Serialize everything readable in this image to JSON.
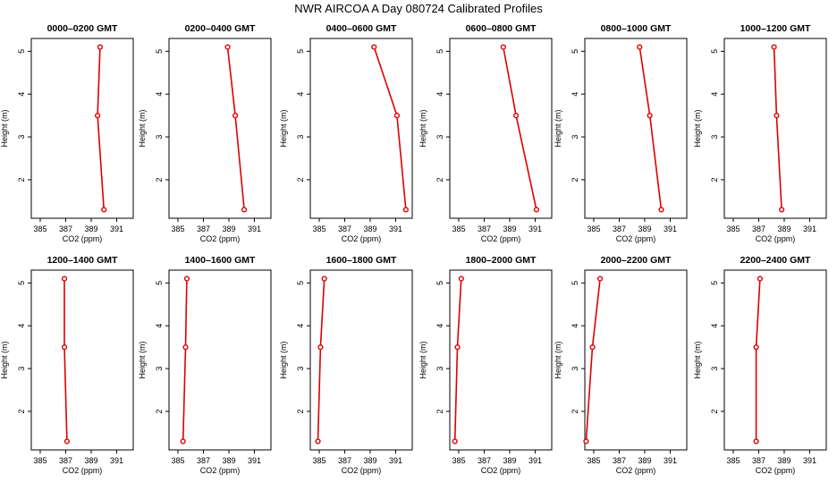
{
  "figure": {
    "title": "NWR AIRCOA A  Day 080724  Calibrated Profiles"
  },
  "style": {
    "series_color": "#dd0000",
    "axis_color": "#000000"
  },
  "chart_data": [
    {
      "type": "line",
      "title": "0000–0200 GMT",
      "xlabel": "CO2 (ppm)",
      "ylabel": "Height (m)",
      "xlim": [
        384.3,
        392.3
      ],
      "ylim": [
        1.1,
        5.3
      ],
      "xticks": [
        385,
        387,
        389,
        391
      ],
      "xtick_labels": [
        "385",
        "387",
        "389",
        "391"
      ],
      "yticks": [
        2,
        3,
        4,
        5
      ],
      "ytick_labels": [
        "2",
        "3",
        "4",
        "5"
      ],
      "series": [
        {
          "x": [
            390.0,
            389.5,
            389.7
          ],
          "y": [
            1.3,
            3.5,
            5.1
          ]
        }
      ]
    },
    {
      "type": "line",
      "title": "0200–0400 GMT",
      "xlabel": "CO2 (ppm)",
      "ylabel": "Height (m)",
      "xlim": [
        384.3,
        392.3
      ],
      "ylim": [
        1.1,
        5.3
      ],
      "xticks": [
        385,
        387,
        389,
        391
      ],
      "xtick_labels": [
        "385",
        "387",
        "389",
        "391"
      ],
      "yticks": [
        2,
        3,
        4,
        5
      ],
      "ytick_labels": [
        "2",
        "3",
        "4",
        "5"
      ],
      "series": [
        {
          "x": [
            390.2,
            389.5,
            388.9
          ],
          "y": [
            1.3,
            3.5,
            5.1
          ]
        }
      ]
    },
    {
      "type": "line",
      "title": "0400–0600 GMT",
      "xlabel": "CO2 (ppm)",
      "ylabel": "Height (m)",
      "xlim": [
        384.3,
        392.3
      ],
      "ylim": [
        1.1,
        5.3
      ],
      "xticks": [
        385,
        387,
        389,
        391
      ],
      "xtick_labels": [
        "385",
        "387",
        "389",
        "391"
      ],
      "yticks": [
        2,
        3,
        4,
        5
      ],
      "ytick_labels": [
        "2",
        "3",
        "4",
        "5"
      ],
      "series": [
        {
          "x": [
            391.8,
            391.1,
            389.3
          ],
          "y": [
            1.3,
            3.5,
            5.1
          ]
        }
      ]
    },
    {
      "type": "line",
      "title": "0600–0800 GMT",
      "xlabel": "CO2 (ppm)",
      "ylabel": "Height (m)",
      "xlim": [
        384.3,
        392.3
      ],
      "ylim": [
        1.1,
        5.3
      ],
      "xticks": [
        385,
        387,
        389,
        391
      ],
      "xtick_labels": [
        "385",
        "387",
        "389",
        "391"
      ],
      "yticks": [
        2,
        3,
        4,
        5
      ],
      "ytick_labels": [
        "2",
        "3",
        "4",
        "5"
      ],
      "series": [
        {
          "x": [
            391.1,
            389.5,
            388.5
          ],
          "y": [
            1.3,
            3.5,
            5.1
          ]
        }
      ]
    },
    {
      "type": "line",
      "title": "0800–1000 GMT",
      "xlabel": "CO2 (ppm)",
      "ylabel": "Height (m)",
      "xlim": [
        384.3,
        392.3
      ],
      "ylim": [
        1.1,
        5.3
      ],
      "xticks": [
        385,
        387,
        389,
        391
      ],
      "xtick_labels": [
        "385",
        "387",
        "389",
        "391"
      ],
      "yticks": [
        2,
        3,
        4,
        5
      ],
      "ytick_labels": [
        "2",
        "3",
        "4",
        "5"
      ],
      "series": [
        {
          "x": [
            390.3,
            389.4,
            388.6
          ],
          "y": [
            1.3,
            3.5,
            5.1
          ]
        }
      ]
    },
    {
      "type": "line",
      "title": "1000–1200 GMT",
      "xlabel": "CO2 (ppm)",
      "ylabel": "Height (m)",
      "xlim": [
        384.3,
        392.3
      ],
      "ylim": [
        1.1,
        5.3
      ],
      "xticks": [
        385,
        387,
        389,
        391
      ],
      "xtick_labels": [
        "385",
        "387",
        "389",
        "391"
      ],
      "yticks": [
        2,
        3,
        4,
        5
      ],
      "ytick_labels": [
        "2",
        "3",
        "4",
        "5"
      ],
      "series": [
        {
          "x": [
            388.8,
            388.4,
            388.2
          ],
          "y": [
            1.3,
            3.5,
            5.1
          ]
        }
      ]
    },
    {
      "type": "line",
      "title": "1200–1400 GMT",
      "xlabel": "CO2 (ppm)",
      "ylabel": "Height (m)",
      "xlim": [
        384.3,
        392.3
      ],
      "ylim": [
        1.1,
        5.3
      ],
      "xticks": [
        385,
        387,
        389,
        391
      ],
      "xtick_labels": [
        "385",
        "387",
        "389",
        "391"
      ],
      "yticks": [
        2,
        3,
        4,
        5
      ],
      "ytick_labels": [
        "2",
        "3",
        "4",
        "5"
      ],
      "series": [
        {
          "x": [
            387.1,
            386.9,
            386.9
          ],
          "y": [
            1.3,
            3.5,
            5.1
          ]
        }
      ]
    },
    {
      "type": "line",
      "title": "1400–1600 GMT",
      "xlabel": "CO2 (ppm)",
      "ylabel": "Height (m)",
      "xlim": [
        384.3,
        392.3
      ],
      "ylim": [
        1.1,
        5.3
      ],
      "xticks": [
        385,
        387,
        389,
        391
      ],
      "xtick_labels": [
        "385",
        "387",
        "389",
        "391"
      ],
      "yticks": [
        2,
        3,
        4,
        5
      ],
      "ytick_labels": [
        "2",
        "3",
        "4",
        "5"
      ],
      "series": [
        {
          "x": [
            385.4,
            385.6,
            385.7
          ],
          "y": [
            1.3,
            3.5,
            5.1
          ]
        }
      ]
    },
    {
      "type": "line",
      "title": "1600–1800 GMT",
      "xlabel": "CO2 (ppm)",
      "ylabel": "Height (m)",
      "xlim": [
        384.3,
        392.3
      ],
      "ylim": [
        1.1,
        5.3
      ],
      "xticks": [
        385,
        387,
        389,
        391
      ],
      "xtick_labels": [
        "385",
        "387",
        "389",
        "391"
      ],
      "yticks": [
        2,
        3,
        4,
        5
      ],
      "ytick_labels": [
        "2",
        "3",
        "4",
        "5"
      ],
      "series": [
        {
          "x": [
            384.9,
            385.1,
            385.4
          ],
          "y": [
            1.3,
            3.5,
            5.1
          ]
        }
      ]
    },
    {
      "type": "line",
      "title": "1800–2000 GMT",
      "xlabel": "CO2 (ppm)",
      "ylabel": "Height (m)",
      "xlim": [
        384.3,
        392.3
      ],
      "ylim": [
        1.1,
        5.3
      ],
      "xticks": [
        385,
        387,
        389,
        391
      ],
      "xtick_labels": [
        "385",
        "387",
        "389",
        "391"
      ],
      "yticks": [
        2,
        3,
        4,
        5
      ],
      "ytick_labels": [
        "2",
        "3",
        "4",
        "5"
      ],
      "series": [
        {
          "x": [
            384.7,
            384.9,
            385.2
          ],
          "y": [
            1.3,
            3.5,
            5.1
          ]
        }
      ]
    },
    {
      "type": "line",
      "title": "2000–2200 GMT",
      "xlabel": "CO2 (ppm)",
      "ylabel": "Height (m)",
      "xlim": [
        384.3,
        392.3
      ],
      "ylim": [
        1.1,
        5.3
      ],
      "xticks": [
        385,
        387,
        389,
        391
      ],
      "xtick_labels": [
        "385",
        "387",
        "389",
        "391"
      ],
      "yticks": [
        2,
        3,
        4,
        5
      ],
      "ytick_labels": [
        "2",
        "3",
        "4",
        "5"
      ],
      "series": [
        {
          "x": [
            384.4,
            384.9,
            385.5
          ],
          "y": [
            1.3,
            3.5,
            5.1
          ]
        }
      ]
    },
    {
      "type": "line",
      "title": "2200–2400 GMT",
      "xlabel": "CO2 (ppm)",
      "ylabel": "Height (m)",
      "xlim": [
        384.3,
        392.3
      ],
      "ylim": [
        1.1,
        5.3
      ],
      "xticks": [
        385,
        387,
        389,
        391
      ],
      "xtick_labels": [
        "385",
        "387",
        "389",
        "391"
      ],
      "yticks": [
        2,
        3,
        4,
        5
      ],
      "ytick_labels": [
        "2",
        "3",
        "4",
        "5"
      ],
      "series": [
        {
          "x": [
            386.8,
            386.8,
            387.1
          ],
          "y": [
            1.3,
            3.5,
            5.1
          ]
        }
      ]
    }
  ]
}
